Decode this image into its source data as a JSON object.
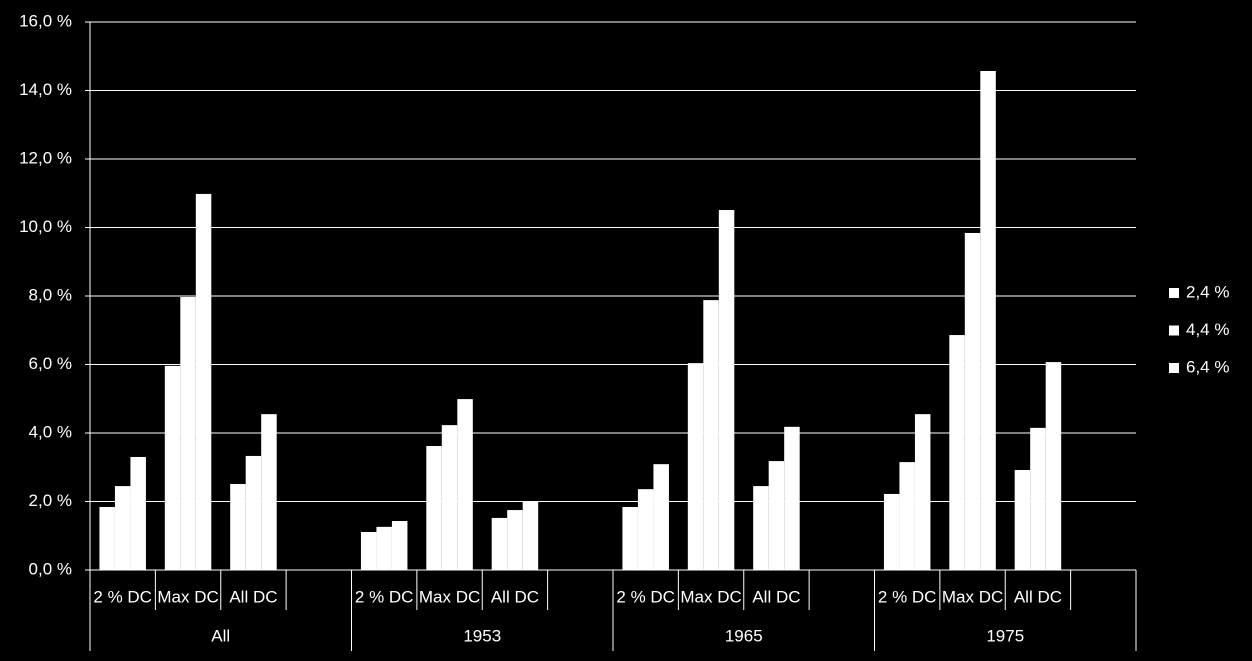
{
  "chart_data": {
    "type": "bar",
    "categories": [
      "2 % DC",
      "Max DC",
      "All DC",
      null,
      "2 % DC",
      "Max DC",
      "All DC",
      null,
      "2 % DC",
      "Max DC",
      "All DC",
      null,
      "2 % DC",
      "Max DC",
      "All DC",
      null
    ],
    "groups": [
      "All",
      "1953",
      "1965",
      "1975"
    ],
    "series": [
      {
        "name": "2,4 %",
        "color": "#ffffff",
        "values": [
          1.84,
          5.96,
          2.51,
          null,
          1.11,
          3.62,
          1.52,
          null,
          1.84,
          6.04,
          2.45,
          null,
          2.22,
          6.86,
          2.92,
          null
        ]
      },
      {
        "name": "4,4 %",
        "color": "#ffffff",
        "values": [
          2.45,
          7.97,
          3.33,
          null,
          1.26,
          4.23,
          1.75,
          null,
          2.36,
          7.88,
          3.18,
          null,
          3.15,
          9.84,
          4.15,
          null
        ]
      },
      {
        "name": "6,4 %",
        "color": "#ffffff",
        "values": [
          3.3,
          10.98,
          4.55,
          null,
          1.43,
          4.99,
          2.01,
          null,
          3.09,
          10.51,
          4.18,
          null,
          4.55,
          14.57,
          6.07,
          null
        ]
      }
    ],
    "ylim": [
      0,
      16
    ],
    "yticks": [
      {
        "value": 0,
        "label": "0,0 %"
      },
      {
        "value": 2,
        "label": "2,0 %"
      },
      {
        "value": 4,
        "label": "4,0 %"
      },
      {
        "value": 6,
        "label": "6,0 %"
      },
      {
        "value": 8,
        "label": "8,0 %"
      },
      {
        "value": 10,
        "label": "10,0 %"
      },
      {
        "value": 12,
        "label": "12,0 %"
      },
      {
        "value": 14,
        "label": "14,0 %"
      },
      {
        "value": 16,
        "label": "16,0 %"
      }
    ],
    "grid": true,
    "legend": "right"
  }
}
